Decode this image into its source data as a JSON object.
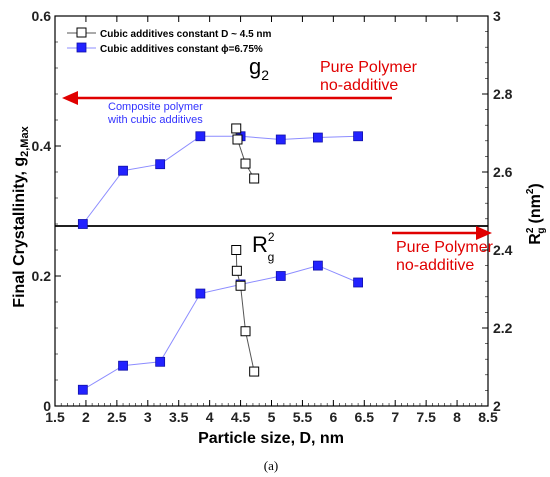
{
  "chart_data": {
    "type": "line",
    "xlabel": "Particle size, D, nm",
    "ylabel_left": "Final Crystallinity, g",
    "ylabel_left_sub": "2,Max",
    "ylabel_right": "R",
    "ylabel_right_sup": "2",
    "ylabel_right_sub": "g",
    "ylabel_right_units": "(nm",
    "ylabel_right_units_sup": "2",
    "ylabel_right_units_end": ")",
    "xlim": [
      1.5,
      8.5
    ],
    "ylim_left": [
      0,
      0.6
    ],
    "ylim_right": [
      2,
      3
    ],
    "x_ticks": [
      "1.5",
      "2",
      "2.5",
      "3",
      "3.5",
      "4",
      "4.5",
      "5",
      "5.5",
      "6",
      "6.5",
      "7",
      "7.5",
      "8",
      "8.5"
    ],
    "y_left_ticks": [
      "0",
      "0.2",
      "0.4",
      "0.6"
    ],
    "y_right_ticks": [
      "2",
      "2.2",
      "2.4",
      "2.6",
      "2.8",
      "3"
    ],
    "caption": "(a)",
    "legend": [
      {
        "label": "Cubic additives constant D ~ 4.5 nm",
        "color": "#000000",
        "marker": "open-square"
      },
      {
        "label": "Cubic additives constant ϕ=6.75%",
        "color": "#3333ff",
        "marker": "filled-square"
      }
    ],
    "series": [
      {
        "name": "Cubic additives constant ϕ=6.75%",
        "axis": "left",
        "color": "#2222ff",
        "line_color": "#8c8cff",
        "x": [
          1.95,
          2.6,
          3.2,
          3.85,
          4.5,
          5.15,
          5.75,
          6.4
        ],
        "y": [
          0.28,
          0.362,
          0.372,
          0.415,
          0.415,
          0.41,
          0.413,
          0.415
        ]
      },
      {
        "name": "Cubic additives constant ϕ=6.75%",
        "axis": "left",
        "color": "#2222ff",
        "line_color": "#8c8cff",
        "x": [
          1.95,
          2.6,
          3.2,
          3.85,
          4.5,
          5.15,
          5.75,
          6.4
        ],
        "y": [
          0.025,
          0.062,
          0.068,
          0.173,
          0.187,
          0.2,
          0.216,
          0.19
        ]
      },
      {
        "name": "Cubic additives constant D ~ 4.5 nm",
        "axis": "left",
        "color": "#000000",
        "line_color": "#555555",
        "x": [
          4.43,
          4.45,
          4.58,
          4.72
        ],
        "y": [
          0.427,
          0.41,
          0.373,
          0.35
        ]
      },
      {
        "name": "Cubic additives constant D ~ 4.5 nm",
        "axis": "left",
        "color": "#000000",
        "line_color": "#555555",
        "x": [
          4.43,
          4.44,
          4.5,
          4.58,
          4.72
        ],
        "y": [
          0.24,
          0.208,
          0.185,
          0.115,
          0.053
        ]
      }
    ],
    "annotations": {
      "g2_main": "g",
      "g2_sub": "2",
      "rg_main": "R",
      "rg_sup": "2",
      "rg_sub": "g",
      "pure_polymer_1": "Pure Polymer",
      "no_additive_1": "no-additive",
      "pure_polymer_2": "Pure Polymer",
      "no_additive_2": "no-additive",
      "composite_1": "Composite polymer",
      "composite_2": "with cubic additives"
    },
    "colors": {
      "arrow": "#e00000",
      "blue_text": "#3333ff",
      "divider": "#000000"
    }
  }
}
